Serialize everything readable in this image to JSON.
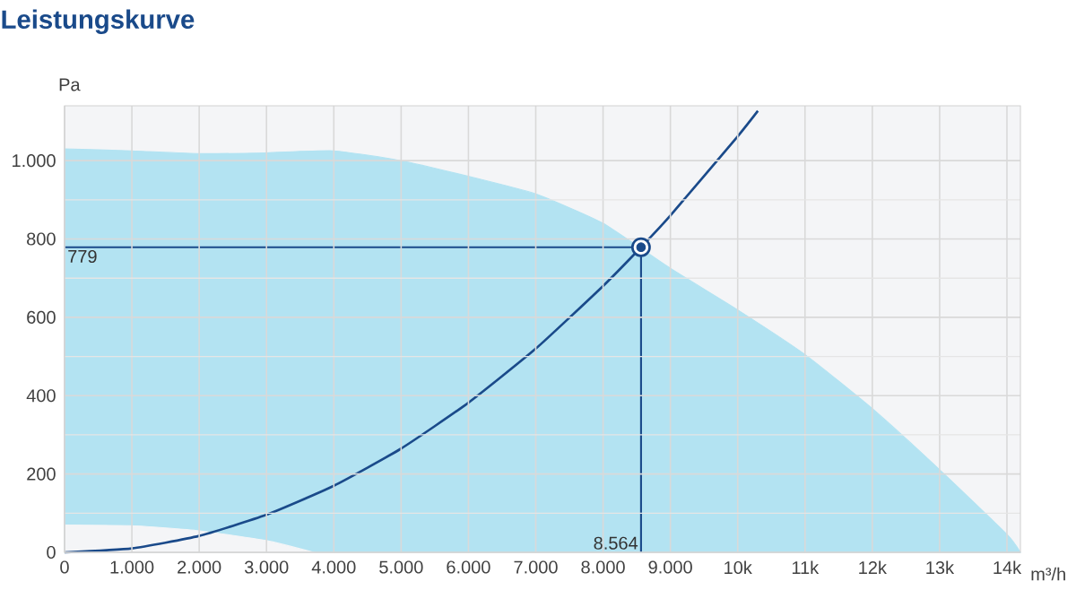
{
  "chart_data": {
    "type": "line",
    "title": "Leistungskurve",
    "xlabel": "m³/h",
    "ylabel": "Pa",
    "xlim": [
      0,
      14200
    ],
    "ylim": [
      0,
      1140
    ],
    "xticks": [
      0,
      {
        "value": 1000,
        "label": "1.000"
      },
      {
        "value": 2000,
        "label": "2.000"
      },
      {
        "value": 3000,
        "label": "3.000"
      },
      {
        "value": 4000,
        "label": "4.000"
      },
      {
        "value": 5000,
        "label": "5.000"
      },
      {
        "value": 6000,
        "label": "6.000"
      },
      {
        "value": 7000,
        "label": "7.000"
      },
      {
        "value": 8000,
        "label": "8.000"
      },
      {
        "value": 9000,
        "label": "9.000"
      },
      {
        "value": 10000,
        "label": "10k"
      },
      {
        "value": 11000,
        "label": "11k"
      },
      {
        "value": 12000,
        "label": "12k"
      },
      {
        "value": 13000,
        "label": "13k"
      },
      {
        "value": 14000,
        "label": "14k"
      }
    ],
    "yticks": [
      0,
      200,
      400,
      600,
      800,
      {
        "value": 1000,
        "label": "1.000"
      }
    ],
    "grid": true,
    "series": [
      {
        "type": "area",
        "color": "#b3e3f2",
        "x": [
          0,
          1000,
          2000,
          3000,
          4000,
          5000,
          6000,
          7000,
          8000,
          9000,
          10000,
          11000,
          12000,
          13000,
          14000,
          14200
        ],
        "values": [
          1030,
          1025,
          1018,
          1020,
          1025,
          1000,
          960,
          915,
          840,
          725,
          619,
          505,
          367,
          211,
          46,
          0
        ]
      },
      {
        "type": "area",
        "color": "#f4f5f7",
        "x": [
          0,
          1000,
          2000,
          3000,
          3700
        ],
        "values": [
          70,
          68,
          55,
          30,
          0
        ]
      },
      {
        "type": "line",
        "color": "#1a4a8a",
        "marker": "none",
        "x": [
          0,
          1000,
          2000,
          3000,
          4000,
          5000,
          6000,
          7000,
          8000,
          8564,
          9000,
          10000,
          10300
        ],
        "values": [
          0,
          10,
          42,
          96,
          170,
          265,
          382,
          520,
          680,
          779,
          860,
          1062,
          1127
        ]
      },
      {
        "type": "scatter",
        "color": "#1a4a8a",
        "marker": "circle",
        "x": [
          8564
        ],
        "values": [
          779
        ]
      }
    ],
    "ref_lines": [
      {
        "axis": "y",
        "value": 779,
        "label": "779",
        "color": "#1a4a8a"
      },
      {
        "axis": "x",
        "value": 8564,
        "label": "8.564",
        "color": "#1a4a8a"
      }
    ]
  }
}
